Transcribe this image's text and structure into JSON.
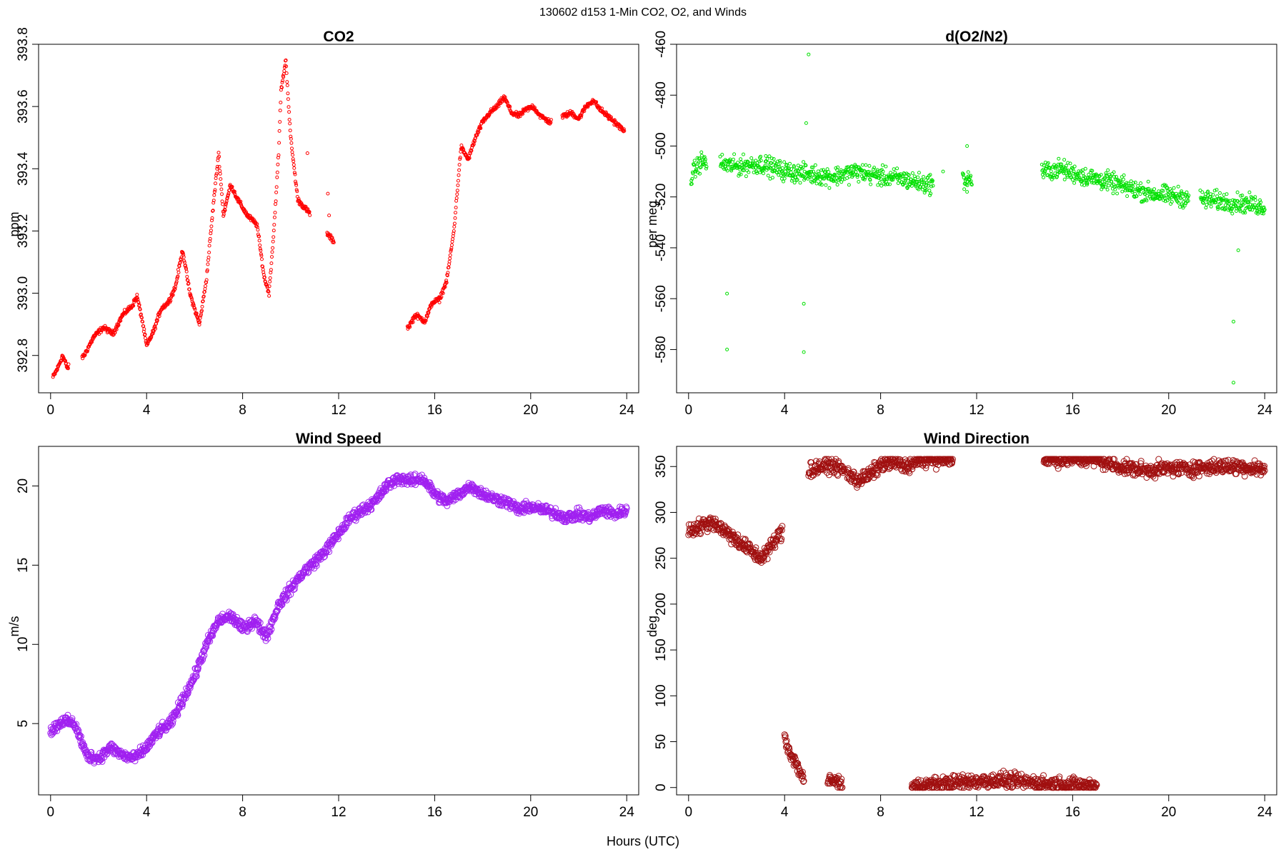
{
  "figure": {
    "title": "130602   d153   1-Min CO2, O2, and Winds",
    "xlabel": "Hours (UTC)"
  },
  "chart_data": [
    {
      "id": "co2",
      "type": "scatter",
      "title": "CO2",
      "ylabel": "ppm",
      "xlim": [
        -0.5,
        24.5
      ],
      "ylim": [
        392.68,
        393.8
      ],
      "xticks": [
        0,
        4,
        8,
        12,
        16,
        20,
        24
      ],
      "yticks": [
        392.8,
        393.0,
        393.2,
        393.4,
        393.6,
        393.8
      ],
      "ytick_labels": [
        "392.8",
        "393.0",
        "393.2",
        "393.4",
        "393.6",
        "393.8"
      ],
      "color": "#ff0000",
      "marker_radius": 2,
      "gaps": [
        [
          0.75,
          1.3
        ],
        [
          10.8,
          11.5
        ],
        [
          11.8,
          14.85
        ],
        [
          20.85,
          21.3
        ]
      ],
      "isolated_points": [
        [
          10.7,
          393.45
        ],
        [
          11.55,
          393.32
        ],
        [
          11.6,
          393.25
        ]
      ],
      "noise": 0.012,
      "series": [
        {
          "name": "",
          "x": [
            0.1,
            0.3,
            0.5,
            0.7,
            1.4,
            1.8,
            2.2,
            2.6,
            3.0,
            3.4,
            3.6,
            3.8,
            4.0,
            4.3,
            4.6,
            4.9,
            5.2,
            5.5,
            5.8,
            6.2,
            6.5,
            6.8,
            7.0,
            7.2,
            7.5,
            7.8,
            8.2,
            8.6,
            8.9,
            9.1,
            9.3,
            9.5,
            9.6,
            9.8,
            10.0,
            10.3,
            14.9,
            15.2,
            15.6,
            15.9,
            16.2,
            16.5,
            16.8,
            17.1,
            17.4,
            17.7,
            18.0,
            18.3,
            18.6,
            18.9,
            19.2,
            19.5,
            19.8,
            20.1,
            20.4,
            20.8,
            21.4,
            21.7,
            22.0,
            22.3,
            22.6,
            22.9,
            23.2,
            23.5,
            23.9
          ],
          "y": [
            392.73,
            392.76,
            392.8,
            392.76,
            392.8,
            392.86,
            392.89,
            392.87,
            392.93,
            392.96,
            392.99,
            392.92,
            392.83,
            392.88,
            392.95,
            392.97,
            393.02,
            393.14,
            393.0,
            392.9,
            393.05,
            393.3,
            393.45,
            393.25,
            393.35,
            393.3,
            393.25,
            393.22,
            393.05,
            393.0,
            393.2,
            393.45,
            393.65,
            393.75,
            393.5,
            393.3,
            392.89,
            392.93,
            392.91,
            392.97,
            392.98,
            393.04,
            393.2,
            393.47,
            393.43,
            393.5,
            393.55,
            393.58,
            393.6,
            393.63,
            393.58,
            393.57,
            393.59,
            393.6,
            393.57,
            393.55,
            393.57,
            393.58,
            393.56,
            393.6,
            393.62,
            393.59,
            393.57,
            393.55,
            393.52
          ]
        }
      ]
    },
    {
      "id": "o2",
      "type": "scatter",
      "title": "d(O2/N2)",
      "ylabel": "per meg",
      "xlim": [
        -0.5,
        24.5
      ],
      "ylim": [
        -597,
        -460
      ],
      "xticks": [
        0,
        4,
        8,
        12,
        16,
        20,
        24
      ],
      "yticks": [
        -460,
        -480,
        -500,
        -520,
        -540,
        -560,
        -580
      ],
      "ytick_labels": [
        "-460",
        "-480",
        "-500",
        "-520",
        "-540",
        "-560",
        "-580"
      ],
      "color": "#00e000",
      "marker_radius": 2,
      "gaps": [
        [
          0.75,
          1.3
        ],
        [
          10.2,
          11.4
        ],
        [
          11.8,
          14.7
        ],
        [
          20.85,
          21.3
        ]
      ],
      "isolated_points": [
        [
          1.6,
          -558
        ],
        [
          1.6,
          -580
        ],
        [
          4.8,
          -562
        ],
        [
          4.8,
          -581
        ],
        [
          4.9,
          -491
        ],
        [
          5.0,
          -464
        ],
        [
          10.6,
          -510
        ],
        [
          11.6,
          -500
        ],
        [
          11.6,
          -518
        ],
        [
          22.7,
          -569
        ],
        [
          22.7,
          -593
        ],
        [
          22.9,
          -541
        ]
      ],
      "noise": 5.5,
      "series": [
        {
          "name": "",
          "x": [
            0.1,
            0.5,
            1.3,
            2.0,
            3.0,
            4.0,
            5.0,
            6.0,
            7.0,
            8.0,
            9.0,
            9.8,
            14.8,
            15.5,
            16.5,
            17.5,
            18.5,
            19.5,
            20.5,
            21.5,
            22.5,
            23.5,
            24.0
          ],
          "y": [
            -512,
            -506,
            -507,
            -508,
            -507,
            -510,
            -511,
            -512,
            -510,
            -512,
            -513,
            -515,
            -510,
            -509,
            -512,
            -514,
            -517,
            -519,
            -520,
            -521,
            -522,
            -523,
            -524
          ]
        }
      ]
    },
    {
      "id": "wind-speed",
      "type": "scatter",
      "title": "Wind Speed",
      "ylabel": "m/s",
      "xlim": [
        -0.5,
        24.5
      ],
      "ylim": [
        0.5,
        22.5
      ],
      "xticks": [
        0,
        4,
        8,
        12,
        16,
        20,
        24
      ],
      "yticks": [
        5,
        10,
        15,
        20
      ],
      "ytick_labels": [
        "5",
        "10",
        "15",
        "20"
      ],
      "color": "#a020f0",
      "marker_radius": 4,
      "gaps": [],
      "isolated_points": [],
      "noise": 0.5,
      "series": [
        {
          "name": "",
          "x": [
            0,
            0.5,
            1.0,
            1.5,
            2.0,
            2.5,
            3.0,
            3.5,
            4.0,
            4.5,
            5.0,
            5.5,
            6.0,
            6.5,
            7.0,
            7.5,
            8.0,
            8.5,
            9.0,
            9.5,
            10.0,
            10.5,
            11.0,
            11.5,
            12.0,
            12.5,
            13.0,
            13.5,
            14.0,
            14.5,
            15.0,
            15.5,
            16.0,
            16.5,
            17.0,
            17.5,
            18.0,
            18.5,
            19.0,
            19.5,
            20.0,
            20.5,
            21.0,
            21.5,
            22.0,
            22.5,
            23.0,
            23.5,
            24.0
          ],
          "y": [
            4.5,
            5.2,
            5.0,
            3.0,
            2.8,
            3.5,
            3.0,
            2.8,
            3.5,
            4.5,
            5.0,
            6.5,
            8.0,
            10.0,
            11.5,
            11.8,
            11.0,
            11.5,
            10.5,
            12.5,
            13.5,
            14.5,
            15.2,
            16.0,
            17.0,
            18.0,
            18.5,
            19.0,
            20.0,
            20.5,
            20.3,
            20.5,
            19.5,
            19.0,
            19.5,
            20.0,
            19.5,
            19.2,
            19.0,
            18.5,
            18.7,
            18.5,
            18.3,
            18.0,
            18.2,
            18.0,
            18.5,
            18.2,
            18.5
          ]
        }
      ]
    },
    {
      "id": "wind-direction",
      "type": "scatter",
      "title": "Wind Direction",
      "ylabel": "deg",
      "xlim": [
        -0.5,
        24.5
      ],
      "ylim": [
        -8,
        372
      ],
      "xticks": [
        0,
        4,
        8,
        12,
        16,
        20,
        24
      ],
      "yticks": [
        0,
        50,
        100,
        150,
        200,
        250,
        300,
        350
      ],
      "ytick_labels": [
        "0",
        "50",
        "100",
        "150",
        "200",
        "250",
        "300",
        "350"
      ],
      "color": "#a01010",
      "marker_radius": 4,
      "gaps": [
        [
          6.5,
          9.3
        ],
        [
          3.9,
          4.99
        ],
        [
          17.2,
          99
        ]
      ],
      "isolated_points": [],
      "noise": 12,
      "series": [
        {
          "name": "",
          "x": [
            0,
            0.5,
            1.0,
            1.5,
            2.0,
            2.5,
            3.0,
            3.5,
            3.9
          ],
          "y": [
            280,
            285,
            290,
            280,
            270,
            260,
            250,
            265,
            280
          ]
        },
        {
          "name": "",
          "x": [
            4.0,
            4.2,
            4.4,
            4.6,
            4.8
          ],
          "y": [
            55,
            40,
            30,
            20,
            8
          ]
        },
        {
          "name": "",
          "x": [
            5.8,
            6.0,
            6.2,
            6.4
          ],
          "y": [
            5,
            8,
            6,
            5
          ]
        },
        {
          "name": "",
          "x": [
            5.0,
            5.5,
            6.0,
            6.5,
            7.0,
            7.5,
            8.0,
            8.5,
            9.0,
            9.5,
            10.0,
            10.5,
            11.0
          ],
          "y": [
            345,
            350,
            352,
            345,
            335,
            340,
            352,
            355,
            350,
            355,
            358,
            358,
            358
          ]
        },
        {
          "name": "",
          "x": [
            9.3,
            10.0,
            11.0,
            12.0,
            13.0,
            14.0,
            15.0,
            16.0,
            17.0
          ],
          "y": [
            1,
            3,
            5,
            7,
            8,
            6,
            4,
            3,
            2
          ]
        },
        {
          "name": "",
          "x": [
            14.8,
            15.2,
            15.6,
            16.0,
            16.5,
            17.0,
            17.5,
            18.0,
            18.5,
            19.0,
            20.0,
            21.0,
            22.0,
            23.0,
            24.0
          ],
          "y": [
            358,
            358,
            358,
            358,
            358,
            358,
            353,
            350,
            348,
            346,
            348,
            348,
            350,
            350,
            347
          ]
        }
      ]
    }
  ]
}
